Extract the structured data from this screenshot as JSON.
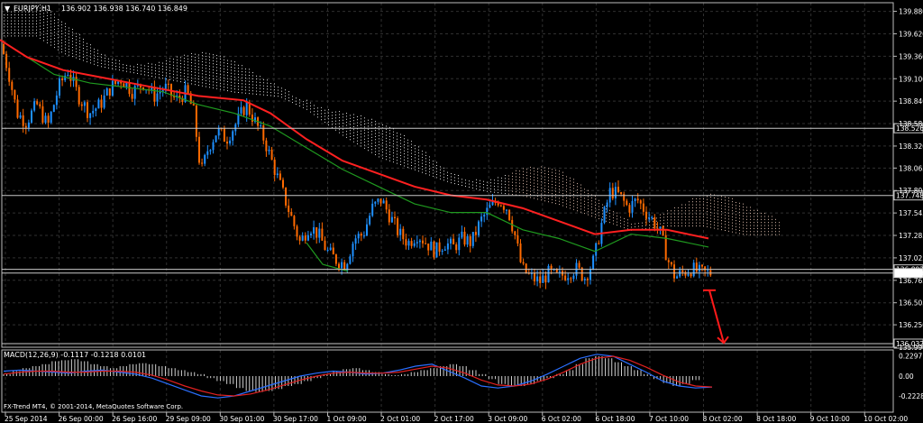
{
  "header": {
    "symbol": "EURJPY,H1",
    "ohlc": "136.902 136.938 136.740 136.849"
  },
  "macd": {
    "label": "MACD(12,26,9) -0.1117 -0.1218 0.0101",
    "ticks": [
      "0.2297",
      "0.00",
      "-0.2228"
    ]
  },
  "copyright": "FX-Trend MT4, © 2001-2014, MetaQuotes Software Corp.",
  "chart_data": {
    "type": "candlestick",
    "y_ticks": [
      139.88,
      139.62,
      139.36,
      139.1,
      138.84,
      138.58,
      138.32,
      138.065,
      137.805,
      137.545,
      137.285,
      137.025,
      136.765,
      136.505,
      136.25,
      135.99
    ],
    "y_tick_labels": [
      "139.880",
      "139.620",
      "139.360",
      "139.100",
      "138.840",
      "138.580",
      "138.320",
      "138.065",
      "137.805",
      "137.545",
      "137.285",
      "137.025",
      "136.765",
      "136.505",
      "136.250",
      "135.990"
    ],
    "ylim": [
      135.99,
      139.98
    ],
    "hlines": [
      {
        "value": 138.526,
        "label": "138.526"
      },
      {
        "value": 137.748,
        "label": "137.748"
      },
      {
        "value": 136.892,
        "label": "136.892"
      },
      {
        "value": 136.849,
        "label": "136.849"
      },
      {
        "value": 136.032,
        "label": "136.032"
      }
    ],
    "x_labels": [
      "25 Sep 2014",
      "26 Sep 00:00",
      "26 Sep 16:00",
      "29 Sep 09:00",
      "30 Sep 01:00",
      "30 Sep 17:00",
      "1 Oct 09:00",
      "2 Oct 01:00",
      "2 Oct 17:00",
      "3 Oct 09:00",
      "6 Oct 02:00",
      "6 Oct 18:00",
      "7 Oct 10:00",
      "8 Oct 02:00",
      "8 Oct 18:00",
      "9 Oct 10:00",
      "10 Oct 02:00"
    ],
    "close_path": [
      [
        0,
        139.5
      ],
      [
        8,
        139.2
      ],
      [
        18,
        138.7
      ],
      [
        28,
        138.6
      ],
      [
        40,
        138.8
      ],
      [
        52,
        138.55
      ],
      [
        64,
        139.0
      ],
      [
        74,
        139.2
      ],
      [
        86,
        138.9
      ],
      [
        98,
        138.7
      ],
      [
        110,
        138.8
      ],
      [
        122,
        139.0
      ],
      [
        134,
        139.1
      ],
      [
        146,
        138.95
      ],
      [
        158,
        139.05
      ],
      [
        170,
        138.9
      ],
      [
        182,
        139.0
      ],
      [
        194,
        138.85
      ],
      [
        206,
        138.95
      ],
      [
        214,
        138.7
      ],
      [
        222,
        138.0
      ],
      [
        230,
        138.3
      ],
      [
        240,
        138.5
      ],
      [
        250,
        138.4
      ],
      [
        262,
        138.6
      ],
      [
        272,
        138.8
      ],
      [
        282,
        138.6
      ],
      [
        292,
        138.4
      ],
      [
        302,
        138.1
      ],
      [
        312,
        137.8
      ],
      [
        322,
        137.5
      ],
      [
        332,
        137.2
      ],
      [
        342,
        137.4
      ],
      [
        352,
        137.3
      ],
      [
        362,
        137.1
      ],
      [
        372,
        137.0
      ],
      [
        382,
        136.95
      ],
      [
        392,
        137.25
      ],
      [
        402,
        137.3
      ],
      [
        412,
        137.6
      ],
      [
        422,
        137.7
      ],
      [
        432,
        137.5
      ],
      [
        442,
        137.3
      ],
      [
        452,
        137.2
      ],
      [
        462,
        137.3
      ],
      [
        472,
        137.2
      ],
      [
        482,
        137.1
      ],
      [
        492,
        137.2
      ],
      [
        502,
        137.15
      ],
      [
        512,
        137.25
      ],
      [
        522,
        137.2
      ],
      [
        532,
        137.45
      ],
      [
        542,
        137.6
      ],
      [
        552,
        137.7
      ],
      [
        562,
        137.6
      ],
      [
        570,
        137.3
      ],
      [
        578,
        136.9
      ],
      [
        588,
        136.8
      ],
      [
        598,
        136.75
      ],
      [
        608,
        136.85
      ],
      [
        618,
        136.8
      ],
      [
        628,
        136.85
      ],
      [
        638,
        136.9
      ],
      [
        648,
        136.8
      ],
      [
        658,
        137.0
      ],
      [
        666,
        137.4
      ],
      [
        676,
        137.8
      ],
      [
        686,
        137.75
      ],
      [
        696,
        137.6
      ],
      [
        706,
        137.7
      ],
      [
        716,
        137.55
      ],
      [
        724,
        137.45
      ],
      [
        732,
        137.3
      ],
      [
        740,
        137.0
      ],
      [
        748,
        136.8
      ],
      [
        756,
        136.85
      ],
      [
        766,
        136.9
      ],
      [
        776,
        136.85
      ],
      [
        786,
        136.85
      ]
    ],
    "ma_red": [
      [
        0,
        139.55
      ],
      [
        30,
        139.35
      ],
      [
        70,
        139.2
      ],
      [
        120,
        139.1
      ],
      [
        170,
        139.0
      ],
      [
        220,
        138.9
      ],
      [
        270,
        138.85
      ],
      [
        300,
        138.7
      ],
      [
        340,
        138.4
      ],
      [
        380,
        138.15
      ],
      [
        420,
        138.0
      ],
      [
        460,
        137.85
      ],
      [
        500,
        137.75
      ],
      [
        540,
        137.7
      ],
      [
        580,
        137.6
      ],
      [
        620,
        137.45
      ],
      [
        660,
        137.3
      ],
      [
        700,
        137.35
      ],
      [
        740,
        137.35
      ],
      [
        786,
        137.25
      ]
    ],
    "ma_green": [
      [
        0,
        139.55
      ],
      [
        30,
        139.35
      ],
      [
        60,
        139.15
      ],
      [
        100,
        139.05
      ],
      [
        140,
        139.0
      ],
      [
        180,
        138.95
      ],
      [
        220,
        138.8
      ],
      [
        260,
        138.7
      ],
      [
        300,
        138.55
      ],
      [
        340,
        138.3
      ],
      [
        380,
        138.05
      ],
      [
        420,
        137.85
      ],
      [
        460,
        137.65
      ],
      [
        500,
        137.55
      ],
      [
        540,
        137.55
      ],
      [
        580,
        137.35
      ],
      [
        620,
        137.25
      ],
      [
        660,
        137.1
      ],
      [
        700,
        137.3
      ],
      [
        740,
        137.25
      ],
      [
        786,
        137.15
      ]
    ],
    "support_line": [
      [
        340,
        137.2
      ],
      [
        358,
        136.95
      ],
      [
        386,
        136.87
      ]
    ],
    "projection_arrow": {
      "from": [
        136.65
      ],
      "to": [
        136.04
      ]
    },
    "macd_histogram": [
      0.02,
      0.05,
      0.08,
      0.1,
      0.12,
      0.15,
      0.16,
      0.17,
      0.15,
      0.12,
      0.1,
      0.08,
      0.1,
      0.12,
      0.13,
      0.12,
      0.1,
      0.08,
      0.06,
      0.04,
      0.02,
      -0.02,
      -0.05,
      -0.08,
      -0.12,
      -0.15,
      -0.16,
      -0.15,
      -0.13,
      -0.1,
      -0.08,
      -0.05,
      -0.02,
      0.02,
      0.05,
      0.07,
      0.08,
      0.06,
      0.04,
      0.02,
      0.01,
      0.02,
      0.04,
      0.06,
      0.08,
      0.1,
      0.12,
      0.1,
      0.06,
      0.02,
      -0.03,
      -0.08,
      -0.1,
      -0.1,
      -0.08,
      -0.05,
      -0.02,
      0.02,
      0.06,
      0.12,
      0.18,
      0.2,
      0.18,
      0.14,
      0.1,
      0.06,
      0.02,
      -0.03,
      -0.07,
      -0.1,
      -0.08,
      -0.04,
      0.0
    ],
    "macd_line": [
      0.05,
      0.06,
      0.05,
      0.04,
      0.03,
      0.05,
      0.06,
      0.04,
      0.02,
      -0.02,
      -0.08,
      -0.14,
      -0.2,
      -0.22,
      -0.2,
      -0.15,
      -0.1,
      -0.05,
      0.0,
      0.03,
      0.05,
      0.04,
      0.02,
      0.03,
      0.06,
      0.1,
      0.12,
      0.05,
      -0.02,
      -0.1,
      -0.12,
      -0.1,
      -0.05,
      0.02,
      0.1,
      0.18,
      0.22,
      0.2,
      0.12,
      0.04,
      -0.05,
      -0.1,
      -0.12,
      -0.11
    ],
    "signal_line": [
      0.02,
      0.04,
      0.05,
      0.05,
      0.04,
      0.04,
      0.05,
      0.05,
      0.04,
      0.01,
      -0.04,
      -0.1,
      -0.15,
      -0.19,
      -0.2,
      -0.18,
      -0.14,
      -0.09,
      -0.04,
      0.0,
      0.03,
      0.04,
      0.03,
      0.03,
      0.04,
      0.07,
      0.1,
      0.08,
      0.03,
      -0.04,
      -0.09,
      -0.1,
      -0.08,
      -0.03,
      0.04,
      0.12,
      0.18,
      0.2,
      0.16,
      0.09,
      0.01,
      -0.06,
      -0.1,
      -0.11
    ]
  }
}
